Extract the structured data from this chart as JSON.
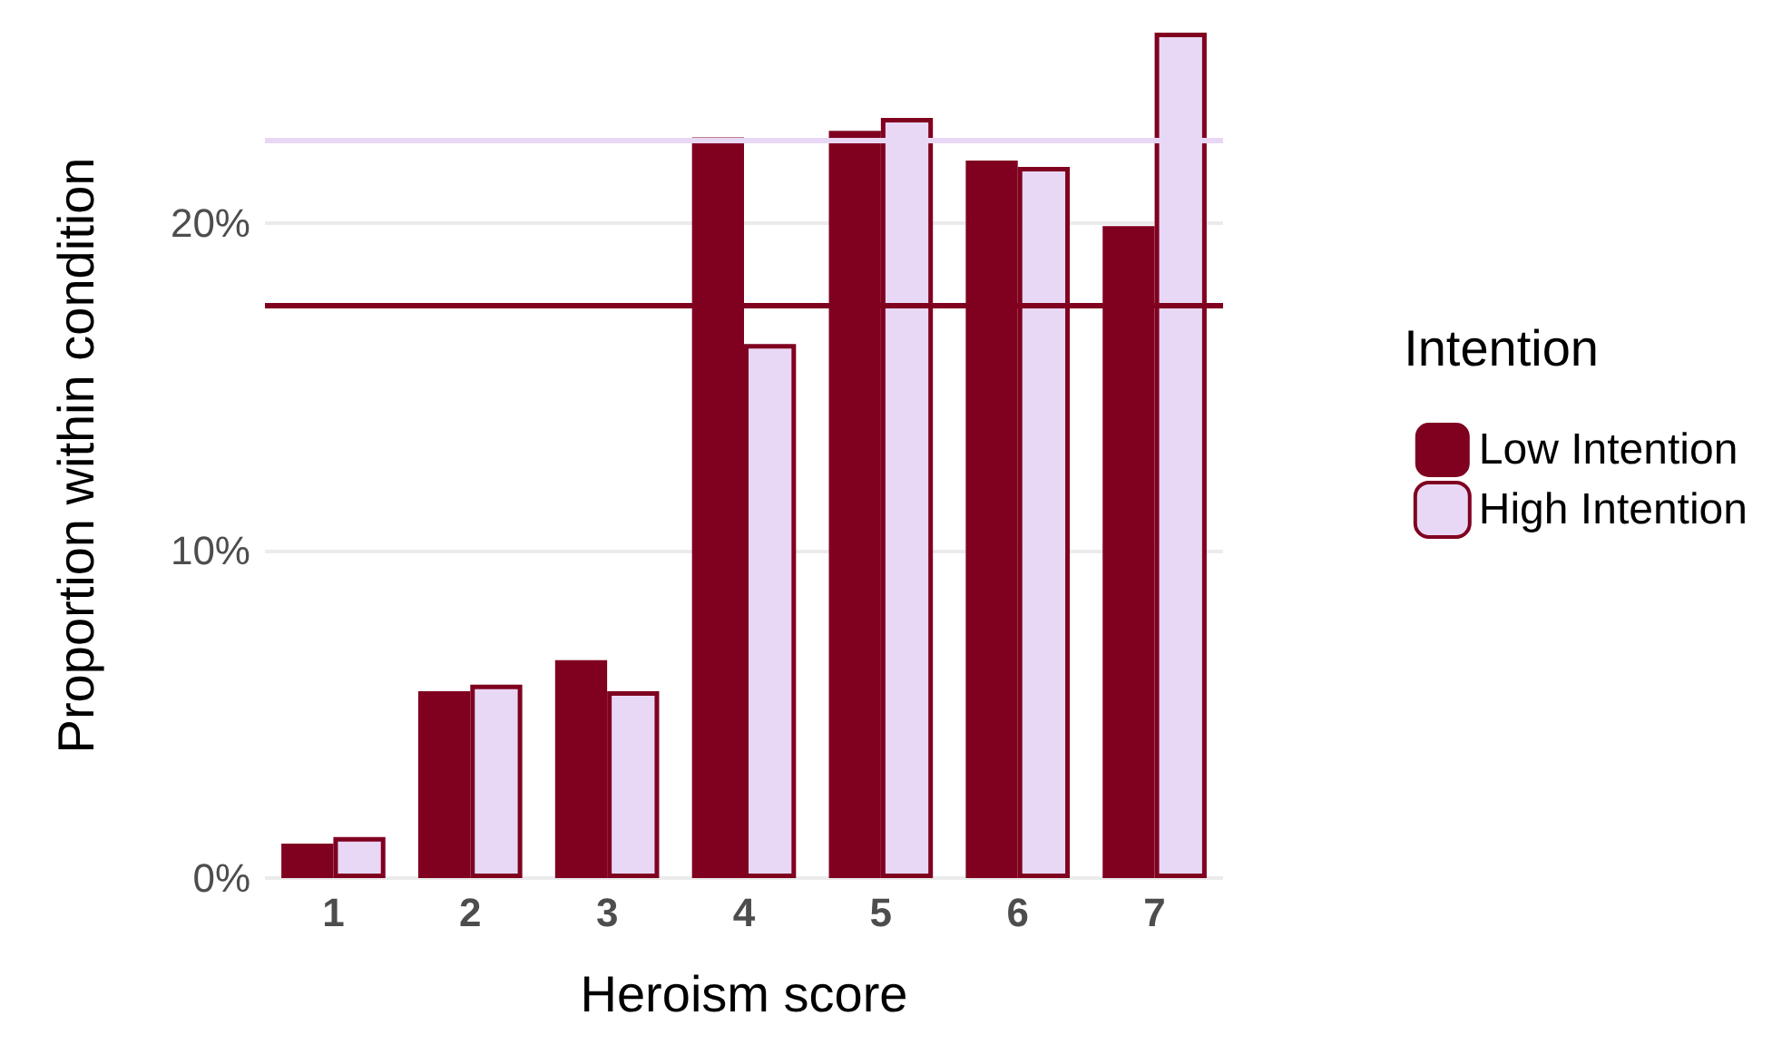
{
  "chart_data": {
    "type": "bar",
    "xlabel": "Heroism score",
    "ylabel": "Proportion within condition",
    "legend_title": "Intention",
    "categories": [
      "1",
      "2",
      "3",
      "4",
      "5",
      "6",
      "7"
    ],
    "series": [
      {
        "name": "Low Intention",
        "color": "#800020",
        "values": [
          1.05,
          5.7,
          6.65,
          22.6,
          22.8,
          21.9,
          19.9
        ]
      },
      {
        "name": "High Intention",
        "color": "#e8d8f5",
        "values": [
          1.25,
          5.9,
          5.7,
          16.3,
          23.2,
          21.7,
          25.8
        ]
      }
    ],
    "ylim": [
      0,
      25.8
    ],
    "yticks": [
      {
        "value": 0,
        "label": "0%"
      },
      {
        "value": 10,
        "label": "10%"
      },
      {
        "value": 20,
        "label": "20%"
      }
    ],
    "ref_lines": [
      {
        "axis": "y",
        "value": 17.5,
        "label": null,
        "color": "#800020"
      },
      {
        "axis": "y",
        "value": 22.5,
        "label": null,
        "color": "#e8d8f5"
      }
    ],
    "grid": "y",
    "legend": "right"
  }
}
